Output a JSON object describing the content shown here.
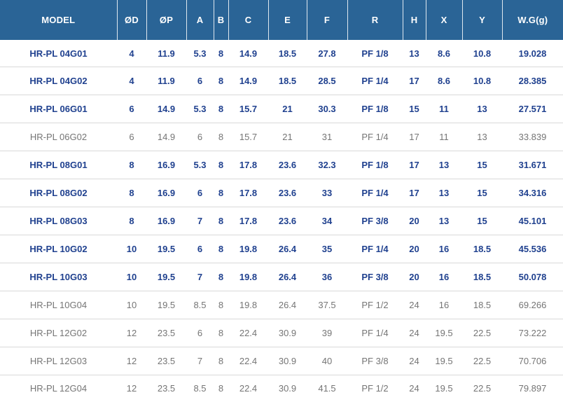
{
  "table": {
    "columns": [
      {
        "key": "model",
        "label": "MODEL"
      },
      {
        "key": "od",
        "label": "ØD"
      },
      {
        "key": "op",
        "label": "ØP"
      },
      {
        "key": "a",
        "label": "A"
      },
      {
        "key": "b",
        "label": "B"
      },
      {
        "key": "c",
        "label": "C"
      },
      {
        "key": "e",
        "label": "E"
      },
      {
        "key": "f",
        "label": "F"
      },
      {
        "key": "r",
        "label": "R"
      },
      {
        "key": "h",
        "label": "H"
      },
      {
        "key": "x",
        "label": "X"
      },
      {
        "key": "y",
        "label": "Y"
      },
      {
        "key": "wg",
        "label": "W.G(g)"
      }
    ],
    "rows": [
      {
        "model": "HR-PL 04G01",
        "highlighted": true,
        "values": [
          "4",
          "11.9",
          "5.3",
          "8",
          "14.9",
          "18.5",
          "27.8",
          "PF 1/8",
          "13",
          "8.6",
          "10.8",
          "19.028"
        ]
      },
      {
        "model": "HR-PL 04G02",
        "highlighted": true,
        "values": [
          "4",
          "11.9",
          "6",
          "8",
          "14.9",
          "18.5",
          "28.5",
          "PF 1/4",
          "17",
          "8.6",
          "10.8",
          "28.385"
        ]
      },
      {
        "model": "HR-PL 06G01",
        "highlighted": true,
        "values": [
          "6",
          "14.9",
          "5.3",
          "8",
          "15.7",
          "21",
          "30.3",
          "PF 1/8",
          "15",
          "11",
          "13",
          "27.571"
        ]
      },
      {
        "model": "HR-PL 06G02",
        "highlighted": false,
        "values": [
          "6",
          "14.9",
          "6",
          "8",
          "15.7",
          "21",
          "31",
          "PF 1/4",
          "17",
          "11",
          "13",
          "33.839"
        ]
      },
      {
        "model": "HR-PL 08G01",
        "highlighted": true,
        "values": [
          "8",
          "16.9",
          "5.3",
          "8",
          "17.8",
          "23.6",
          "32.3",
          "PF 1/8",
          "17",
          "13",
          "15",
          "31.671"
        ]
      },
      {
        "model": "HR-PL 08G02",
        "highlighted": true,
        "values": [
          "8",
          "16.9",
          "6",
          "8",
          "17.8",
          "23.6",
          "33",
          "PF 1/4",
          "17",
          "13",
          "15",
          "34.316"
        ]
      },
      {
        "model": "HR-PL 08G03",
        "highlighted": true,
        "values": [
          "8",
          "16.9",
          "7",
          "8",
          "17.8",
          "23.6",
          "34",
          "PF 3/8",
          "20",
          "13",
          "15",
          "45.101"
        ]
      },
      {
        "model": "HR-PL 10G02",
        "highlighted": true,
        "values": [
          "10",
          "19.5",
          "6",
          "8",
          "19.8",
          "26.4",
          "35",
          "PF 1/4",
          "20",
          "16",
          "18.5",
          "45.536"
        ]
      },
      {
        "model": "HR-PL 10G03",
        "highlighted": true,
        "values": [
          "10",
          "19.5",
          "7",
          "8",
          "19.8",
          "26.4",
          "36",
          "PF 3/8",
          "20",
          "16",
          "18.5",
          "50.078"
        ]
      },
      {
        "model": "HR-PL 10G04",
        "highlighted": false,
        "values": [
          "10",
          "19.5",
          "8.5",
          "8",
          "19.8",
          "26.4",
          "37.5",
          "PF 1/2",
          "24",
          "16",
          "18.5",
          "69.266"
        ]
      },
      {
        "model": "HR-PL 12G02",
        "highlighted": false,
        "values": [
          "12",
          "23.5",
          "6",
          "8",
          "22.4",
          "30.9",
          "39",
          "PF 1/4",
          "24",
          "19.5",
          "22.5",
          "73.222"
        ]
      },
      {
        "model": "HR-PL 12G03",
        "highlighted": false,
        "values": [
          "12",
          "23.5",
          "7",
          "8",
          "22.4",
          "30.9",
          "40",
          "PF 3/8",
          "24",
          "19.5",
          "22.5",
          "70.706"
        ]
      },
      {
        "model": "HR-PL 12G04",
        "highlighted": false,
        "values": [
          "12",
          "23.5",
          "8.5",
          "8",
          "22.4",
          "30.9",
          "41.5",
          "PF 1/2",
          "24",
          "19.5",
          "22.5",
          "79.897"
        ]
      }
    ]
  },
  "colors": {
    "header_background": "#2a6496",
    "header_text": "#ffffff",
    "highlight_text": "#20418f",
    "normal_text": "#757575",
    "row_separator": "#d9d9d9",
    "row_background": "#ffffff"
  }
}
